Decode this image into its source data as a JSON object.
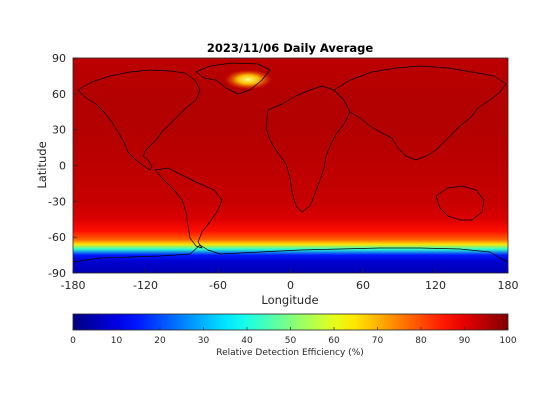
{
  "chart_data": {
    "type": "heatmap",
    "title": "2023/11/06 Daily Average",
    "xlabel": "Longitude",
    "ylabel": "Latitude",
    "xlim": [
      -180,
      180
    ],
    "ylim": [
      -90,
      90
    ],
    "xticks": [
      -180,
      -120,
      -60,
      0,
      60,
      120,
      180
    ],
    "yticks": [
      90,
      60,
      30,
      0,
      -30,
      -60,
      -90
    ],
    "colorbar": {
      "label": "Relative Detection Efficiency (%)",
      "range": [
        0,
        100
      ],
      "ticks": [
        0,
        10,
        20,
        30,
        40,
        50,
        60,
        70,
        80,
        90,
        100
      ],
      "colormap": "jet"
    },
    "latitude_profile": [
      {
        "lat": 90,
        "value": 94
      },
      {
        "lat": 60,
        "value": 95
      },
      {
        "lat": 30,
        "value": 95
      },
      {
        "lat": 0,
        "value": 94
      },
      {
        "lat": -30,
        "value": 93
      },
      {
        "lat": -45,
        "value": 91
      },
      {
        "lat": -55,
        "value": 86
      },
      {
        "lat": -62,
        "value": 78
      },
      {
        "lat": -66,
        "value": 65
      },
      {
        "lat": -70,
        "value": 42
      },
      {
        "lat": -75,
        "value": 15
      },
      {
        "lat": -80,
        "value": 8
      },
      {
        "lat": -90,
        "value": 5
      }
    ],
    "hotspot": {
      "lon": -35,
      "lat": 72,
      "value": 65
    }
  }
}
